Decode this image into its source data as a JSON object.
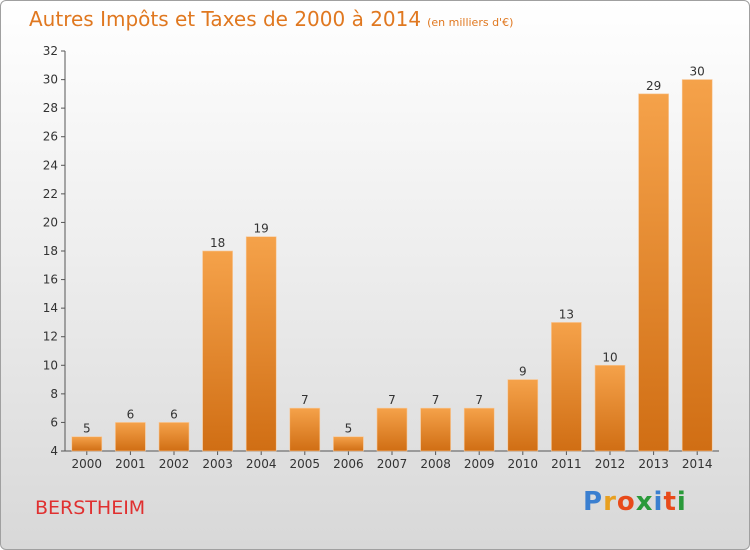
{
  "chart_data": {
    "type": "bar",
    "title": "Autres Impôts et Taxes de 2000 à 2014",
    "subtitle": "(en milliers d'€)",
    "categories": [
      "2000",
      "2001",
      "2002",
      "2003",
      "2004",
      "2005",
      "2006",
      "2007",
      "2008",
      "2009",
      "2010",
      "2011",
      "2012",
      "2013",
      "2014"
    ],
    "values": [
      5,
      6,
      6,
      18,
      19,
      7,
      5,
      7,
      7,
      7,
      9,
      13,
      10,
      29,
      30
    ],
    "xlabel": "",
    "ylabel": "",
    "ylim": [
      4,
      32
    ],
    "yticks": [
      4,
      6,
      8,
      10,
      12,
      14,
      16,
      18,
      20,
      22,
      24,
      26,
      28,
      30,
      32
    ],
    "grid": false,
    "bar_color_top": "#f5a24a",
    "bar_color_bottom": "#d06e14"
  },
  "commune": "BERSTHEIM",
  "logo": {
    "letters": [
      "P",
      "r",
      "o",
      "x",
      "i",
      "t",
      "i"
    ],
    "colors": [
      "#3a7fd0",
      "#e8a020",
      "#e84a1a",
      "#2a9a3a",
      "#3a7fd0",
      "#e84a1a",
      "#2a9a3a"
    ]
  }
}
